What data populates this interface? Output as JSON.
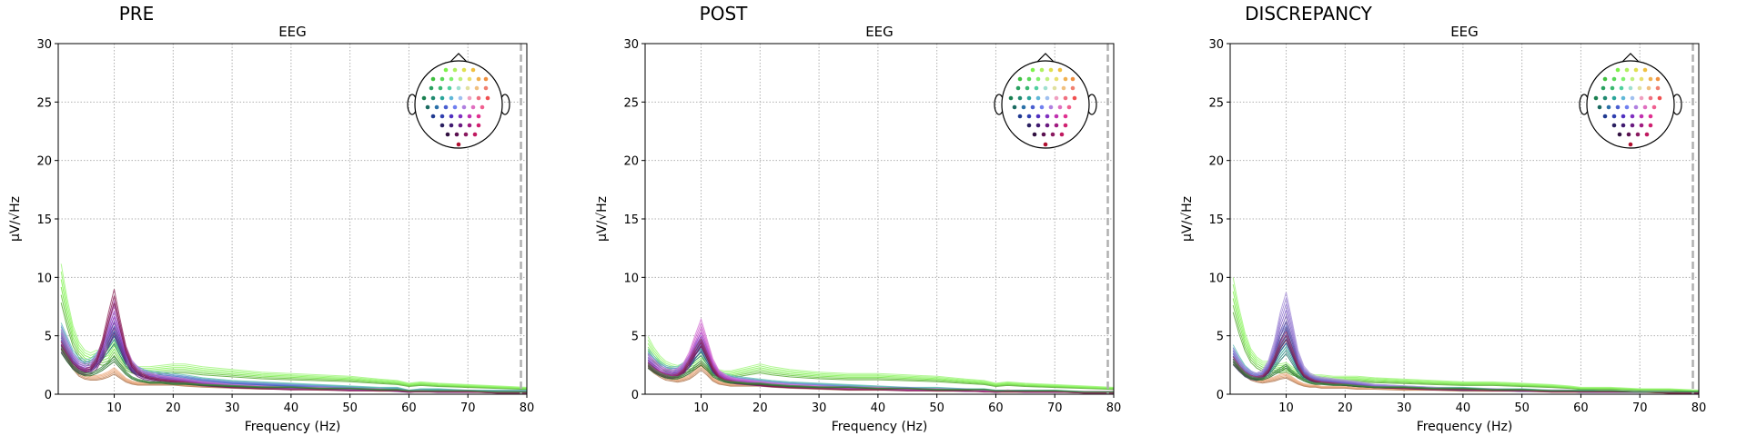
{
  "chart_data": [
    {
      "type": "line",
      "panel_title": "PRE",
      "title": "EEG",
      "xlabel": "Frequency (Hz)",
      "ylabel": "µV/√Hz",
      "xlim": [
        0.5,
        80
      ],
      "ylim": [
        0,
        30
      ],
      "xticks": [
        "10",
        "20",
        "30",
        "40",
        "50",
        "60",
        "70",
        "80"
      ],
      "yticks": [
        "0",
        "5",
        "10",
        "15",
        "20",
        "25",
        "30"
      ],
      "grid": true,
      "cutoff_hz": 79,
      "x": [
        1,
        2,
        3,
        4,
        5,
        6,
        7,
        8,
        9,
        10,
        11,
        12,
        13,
        14,
        15,
        16,
        18,
        20,
        22,
        25,
        30,
        35,
        40,
        45,
        50,
        55,
        58,
        60,
        62,
        65,
        70,
        75,
        80
      ],
      "series_groups": [
        {
          "color": "#7cf24a",
          "count": 6,
          "values": [
            9.5,
            7.0,
            5.0,
            3.8,
            3.2,
            3.0,
            3.2,
            3.0,
            3.2,
            4.0,
            3.2,
            2.5,
            2.2,
            2.0,
            2.0,
            2.0,
            2.1,
            2.2,
            2.2,
            2.0,
            1.8,
            1.6,
            1.5,
            1.4,
            1.3,
            1.1,
            1.0,
            0.8,
            0.9,
            0.8,
            0.7,
            0.6,
            0.5
          ]
        },
        {
          "color": "#e8a070",
          "count": 5,
          "values": [
            4.5,
            3.5,
            2.5,
            1.8,
            1.5,
            1.4,
            1.4,
            1.5,
            1.7,
            2.0,
            1.6,
            1.2,
            1.0,
            0.9,
            0.9,
            0.9,
            0.9,
            0.9,
            0.8,
            0.7,
            0.6,
            0.5,
            0.5,
            0.4,
            0.4,
            0.3,
            0.3,
            0.2,
            0.3,
            0.3,
            0.3,
            0.2,
            0.2
          ]
        },
        {
          "color": "#2aa59a",
          "count": 6,
          "values": [
            5.2,
            4.2,
            3.2,
            2.7,
            2.5,
            2.6,
            3.0,
            3.6,
            4.4,
            5.2,
            4.0,
            2.9,
            2.3,
            2.0,
            1.8,
            1.7,
            1.6,
            1.5,
            1.4,
            1.2,
            1.0,
            0.9,
            0.8,
            0.7,
            0.6,
            0.5,
            0.5,
            0.3,
            0.4,
            0.4,
            0.3,
            0.3,
            0.3
          ]
        },
        {
          "color": "#4a5fd0",
          "count": 6,
          "values": [
            5.0,
            4.0,
            3.0,
            2.5,
            2.3,
            2.4,
            2.9,
            3.8,
            4.9,
            6.0,
            4.6,
            3.2,
            2.4,
            2.0,
            1.8,
            1.6,
            1.5,
            1.4,
            1.3,
            1.1,
            0.9,
            0.8,
            0.7,
            0.6,
            0.5,
            0.4,
            0.4,
            0.3,
            0.3,
            0.3,
            0.3,
            0.2,
            0.2
          ]
        },
        {
          "color": "#a030b8",
          "count": 7,
          "values": [
            4.6,
            3.6,
            2.8,
            2.3,
            2.1,
            2.2,
            2.7,
            3.8,
            5.2,
            6.6,
            5.0,
            3.4,
            2.4,
            1.9,
            1.6,
            1.5,
            1.3,
            1.2,
            1.1,
            0.9,
            0.7,
            0.6,
            0.5,
            0.5,
            0.4,
            0.4,
            0.3,
            0.2,
            0.3,
            0.2,
            0.2,
            0.2,
            0.2
          ]
        },
        {
          "color": "#8a1f52",
          "count": 3,
          "values": [
            4.2,
            3.3,
            2.6,
            2.2,
            2.0,
            2.2,
            2.9,
            4.4,
            6.5,
            8.4,
            6.0,
            3.8,
            2.5,
            1.9,
            1.6,
            1.4,
            1.2,
            1.1,
            1.0,
            0.8,
            0.6,
            0.5,
            0.4,
            0.4,
            0.3,
            0.3,
            0.3,
            0.2,
            0.2,
            0.2,
            0.2,
            0.1,
            0.1
          ]
        },
        {
          "color": "#2e7d32",
          "count": 3,
          "values": [
            3.8,
            3.0,
            2.3,
            1.9,
            1.7,
            1.7,
            1.9,
            2.2,
            2.6,
            3.0,
            2.4,
            1.8,
            1.4,
            1.2,
            1.1,
            1.0,
            1.0,
            0.9,
            0.9,
            0.8,
            0.7,
            0.6,
            0.6,
            0.5,
            0.5,
            0.4,
            0.4,
            0.3,
            0.3,
            0.3,
            0.3,
            0.2,
            0.2
          ]
        }
      ]
    },
    {
      "type": "line",
      "panel_title": "POST",
      "title": "EEG",
      "xlabel": "Frequency (Hz)",
      "ylabel": "µV/√Hz",
      "xlim": [
        0.5,
        80
      ],
      "ylim": [
        0,
        30
      ],
      "xticks": [
        "10",
        "20",
        "30",
        "40",
        "50",
        "60",
        "70",
        "80"
      ],
      "yticks": [
        "0",
        "5",
        "10",
        "15",
        "20",
        "25",
        "30"
      ],
      "grid": true,
      "cutoff_hz": 79,
      "x": [
        1,
        2,
        3,
        4,
        5,
        6,
        7,
        8,
        9,
        10,
        11,
        12,
        13,
        14,
        15,
        16,
        18,
        20,
        22,
        25,
        30,
        35,
        40,
        45,
        50,
        55,
        58,
        60,
        62,
        65,
        70,
        75,
        80
      ],
      "series_groups": [
        {
          "color": "#7cf24a",
          "count": 6,
          "values": [
            4.2,
            3.4,
            2.8,
            2.4,
            2.2,
            2.1,
            2.2,
            2.4,
            2.6,
            3.0,
            2.5,
            2.0,
            1.8,
            1.7,
            1.7,
            1.8,
            2.0,
            2.2,
            2.0,
            1.8,
            1.6,
            1.5,
            1.5,
            1.4,
            1.3,
            1.1,
            1.0,
            0.8,
            0.9,
            0.8,
            0.7,
            0.6,
            0.5
          ]
        },
        {
          "color": "#e8a070",
          "count": 5,
          "values": [
            2.6,
            2.1,
            1.7,
            1.4,
            1.3,
            1.2,
            1.3,
            1.5,
            1.9,
            2.4,
            1.9,
            1.3,
            1.0,
            0.9,
            0.8,
            0.8,
            0.8,
            0.8,
            0.7,
            0.6,
            0.5,
            0.4,
            0.4,
            0.4,
            0.3,
            0.3,
            0.3,
            0.2,
            0.2,
            0.2,
            0.2,
            0.2,
            0.2
          ]
        },
        {
          "color": "#2aa59a",
          "count": 6,
          "values": [
            3.3,
            2.8,
            2.4,
            2.1,
            2.0,
            2.0,
            2.3,
            2.8,
            3.5,
            4.0,
            3.1,
            2.2,
            1.7,
            1.5,
            1.4,
            1.3,
            1.2,
            1.1,
            1.0,
            0.9,
            0.8,
            0.7,
            0.6,
            0.5,
            0.5,
            0.4,
            0.4,
            0.3,
            0.3,
            0.3,
            0.3,
            0.2,
            0.2
          ]
        },
        {
          "color": "#4a5fd0",
          "count": 6,
          "values": [
            3.0,
            2.6,
            2.2,
            2.0,
            1.9,
            1.9,
            2.2,
            2.8,
            3.7,
            4.5,
            3.4,
            2.3,
            1.7,
            1.4,
            1.3,
            1.2,
            1.1,
            1.0,
            0.9,
            0.8,
            0.7,
            0.6,
            0.5,
            0.5,
            0.4,
            0.4,
            0.3,
            0.3,
            0.3,
            0.3,
            0.2,
            0.2,
            0.2
          ]
        },
        {
          "color": "#c030c0",
          "count": 7,
          "values": [
            2.8,
            2.4,
            2.0,
            1.8,
            1.7,
            1.8,
            2.2,
            3.0,
            4.2,
            5.3,
            3.9,
            2.5,
            1.7,
            1.4,
            1.2,
            1.1,
            1.0,
            0.9,
            0.8,
            0.7,
            0.6,
            0.5,
            0.5,
            0.4,
            0.4,
            0.3,
            0.3,
            0.2,
            0.3,
            0.2,
            0.2,
            0.2,
            0.2
          ]
        },
        {
          "color": "#8a1f52",
          "count": 3,
          "values": [
            2.5,
            2.1,
            1.8,
            1.6,
            1.5,
            1.6,
            2.0,
            2.8,
            3.7,
            4.4,
            3.3,
            2.2,
            1.5,
            1.2,
            1.1,
            1.0,
            0.9,
            0.8,
            0.7,
            0.6,
            0.5,
            0.4,
            0.4,
            0.3,
            0.3,
            0.3,
            0.2,
            0.2,
            0.2,
            0.2,
            0.2,
            0.1,
            0.1
          ]
        },
        {
          "color": "#2e7d32",
          "count": 3,
          "values": [
            2.4,
            2.0,
            1.7,
            1.5,
            1.4,
            1.4,
            1.6,
            1.9,
            2.3,
            2.7,
            2.2,
            1.6,
            1.3,
            1.1,
            1.0,
            1.0,
            0.9,
            0.9,
            0.8,
            0.7,
            0.6,
            0.6,
            0.5,
            0.5,
            0.4,
            0.4,
            0.4,
            0.3,
            0.3,
            0.3,
            0.3,
            0.2,
            0.2
          ]
        }
      ]
    },
    {
      "type": "line",
      "panel_title": "DISCREPANCY",
      "title": "EEG",
      "xlabel": "Frequency (Hz)",
      "ylabel": "µV/√Hz",
      "xlim": [
        0.5,
        80
      ],
      "ylim": [
        0,
        30
      ],
      "xticks": [
        "10",
        "20",
        "30",
        "40",
        "50",
        "60",
        "70",
        "80"
      ],
      "yticks": [
        "0",
        "5",
        "10",
        "15",
        "20",
        "25",
        "30"
      ],
      "grid": true,
      "cutoff_hz": 79,
      "x": [
        1,
        2,
        3,
        4,
        5,
        6,
        7,
        8,
        9,
        10,
        11,
        12,
        13,
        14,
        15,
        16,
        18,
        20,
        22,
        25,
        30,
        35,
        40,
        45,
        50,
        55,
        58,
        60,
        62,
        65,
        70,
        75,
        80
      ],
      "series_groups": [
        {
          "color": "#7cf24a",
          "count": 6,
          "values": [
            8.5,
            6.3,
            4.5,
            3.3,
            2.7,
            2.4,
            2.4,
            2.3,
            2.2,
            2.3,
            2.0,
            1.8,
            1.6,
            1.5,
            1.4,
            1.4,
            1.3,
            1.3,
            1.3,
            1.2,
            1.1,
            1.0,
            0.9,
            0.9,
            0.8,
            0.7,
            0.6,
            0.5,
            0.5,
            0.5,
            0.4,
            0.4,
            0.3
          ]
        },
        {
          "color": "#e8a070",
          "count": 5,
          "values": [
            3.0,
            2.3,
            1.8,
            1.4,
            1.2,
            1.1,
            1.2,
            1.3,
            1.5,
            1.6,
            1.3,
            1.0,
            0.8,
            0.7,
            0.7,
            0.6,
            0.6,
            0.6,
            0.5,
            0.5,
            0.4,
            0.4,
            0.3,
            0.3,
            0.3,
            0.2,
            0.2,
            0.2,
            0.2,
            0.2,
            0.2,
            0.1,
            0.1
          ]
        },
        {
          "color": "#2aa59a",
          "count": 6,
          "values": [
            3.6,
            2.8,
            2.1,
            1.7,
            1.5,
            1.6,
            2.0,
            2.7,
            3.5,
            4.2,
            3.2,
            2.2,
            1.6,
            1.3,
            1.2,
            1.1,
            1.0,
            0.9,
            0.8,
            0.7,
            0.6,
            0.5,
            0.5,
            0.4,
            0.4,
            0.3,
            0.3,
            0.3,
            0.3,
            0.2,
            0.2,
            0.2,
            0.2
          ]
        },
        {
          "color": "#4a5fd0",
          "count": 6,
          "values": [
            3.4,
            2.6,
            2.0,
            1.7,
            1.5,
            1.6,
            2.2,
            3.2,
            4.5,
            5.3,
            4.0,
            2.6,
            1.8,
            1.4,
            1.2,
            1.1,
            1.0,
            0.9,
            0.8,
            0.7,
            0.6,
            0.5,
            0.4,
            0.4,
            0.3,
            0.3,
            0.3,
            0.2,
            0.2,
            0.2,
            0.2,
            0.2,
            0.1
          ]
        },
        {
          "color": "#8060c8",
          "count": 7,
          "values": [
            3.2,
            2.5,
            1.9,
            1.6,
            1.5,
            1.7,
            2.4,
            3.8,
            5.8,
            7.2,
            5.2,
            3.1,
            2.0,
            1.5,
            1.3,
            1.2,
            1.1,
            1.0,
            0.9,
            0.7,
            0.6,
            0.5,
            0.4,
            0.4,
            0.3,
            0.3,
            0.3,
            0.2,
            0.2,
            0.2,
            0.2,
            0.2,
            0.1
          ]
        },
        {
          "color": "#8a1f52",
          "count": 3,
          "values": [
            3.0,
            2.3,
            1.8,
            1.5,
            1.4,
            1.5,
            2.0,
            3.0,
            4.2,
            5.0,
            3.7,
            2.4,
            1.6,
            1.3,
            1.1,
            1.0,
            0.9,
            0.8,
            0.7,
            0.6,
            0.5,
            0.4,
            0.4,
            0.3,
            0.3,
            0.2,
            0.2,
            0.2,
            0.2,
            0.2,
            0.2,
            0.1,
            0.1
          ]
        },
        {
          "color": "#2e7d32",
          "count": 3,
          "values": [
            2.8,
            2.2,
            1.7,
            1.4,
            1.3,
            1.3,
            1.5,
            1.8,
            2.1,
            2.4,
            1.9,
            1.5,
            1.2,
            1.0,
            0.9,
            0.9,
            0.8,
            0.8,
            0.7,
            0.6,
            0.6,
            0.5,
            0.5,
            0.4,
            0.4,
            0.3,
            0.3,
            0.3,
            0.3,
            0.3,
            0.2,
            0.2,
            0.2
          ]
        }
      ]
    }
  ],
  "colors": {
    "grid": "#b0b0b0",
    "cutoff_line": "#b0b0b0",
    "axes": "#000000"
  }
}
